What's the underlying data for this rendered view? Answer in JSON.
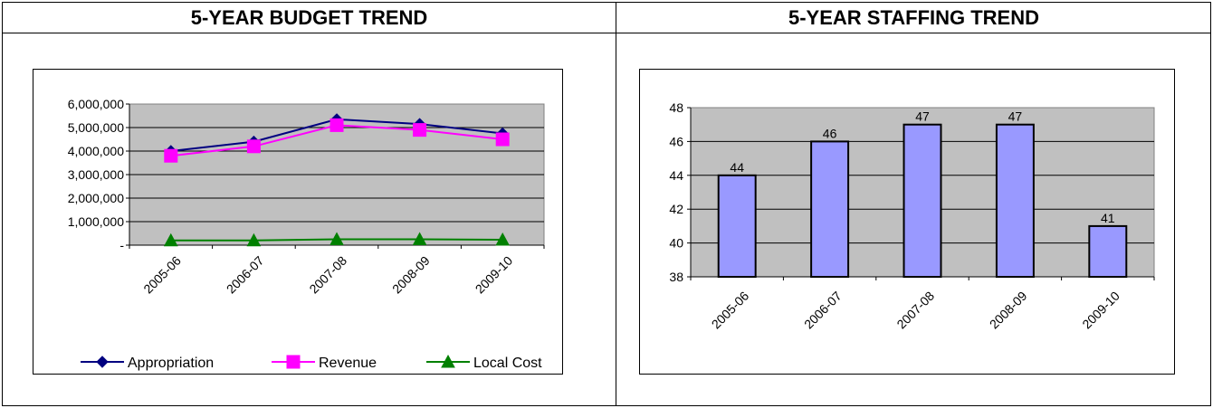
{
  "headers": {
    "budget": "5-YEAR BUDGET TREND",
    "staffing": "5-YEAR STAFFING TREND"
  },
  "chart_data": [
    {
      "type": "line",
      "categories": [
        "2005-06",
        "2006-07",
        "2007-08",
        "2008-09",
        "2009-10"
      ],
      "y_tick_labels": [
        "6,000,000",
        "5,000,000",
        "4,000,000",
        "3,000,000",
        "2,000,000",
        "1,000,000",
        "-"
      ],
      "ylim": [
        0,
        6000000
      ],
      "grid": true,
      "legend_position": "bottom",
      "series": [
        {
          "name": "Appropriation",
          "color": "#000080",
          "marker": "diamond",
          "values": [
            4000000,
            4400000,
            5350000,
            5150000,
            4750000
          ]
        },
        {
          "name": "Revenue",
          "color": "#FF00FF",
          "marker": "square",
          "values": [
            3800000,
            4200000,
            5100000,
            4900000,
            4500000
          ]
        },
        {
          "name": "Local Cost",
          "color": "#008000",
          "marker": "triangle",
          "values": [
            200000,
            200000,
            250000,
            250000,
            230000
          ]
        }
      ]
    },
    {
      "type": "bar",
      "categories": [
        "2005-06",
        "2006-07",
        "2007-08",
        "2008-09",
        "2009-10"
      ],
      "values": [
        44,
        46,
        47,
        47,
        41
      ],
      "data_labels": [
        "44",
        "46",
        "47",
        "47",
        "41"
      ],
      "y_tick_labels": [
        "48",
        "46",
        "44",
        "42",
        "40",
        "38"
      ],
      "ylim": [
        38,
        48
      ],
      "grid": true,
      "bar_color": "#9999FF"
    }
  ]
}
